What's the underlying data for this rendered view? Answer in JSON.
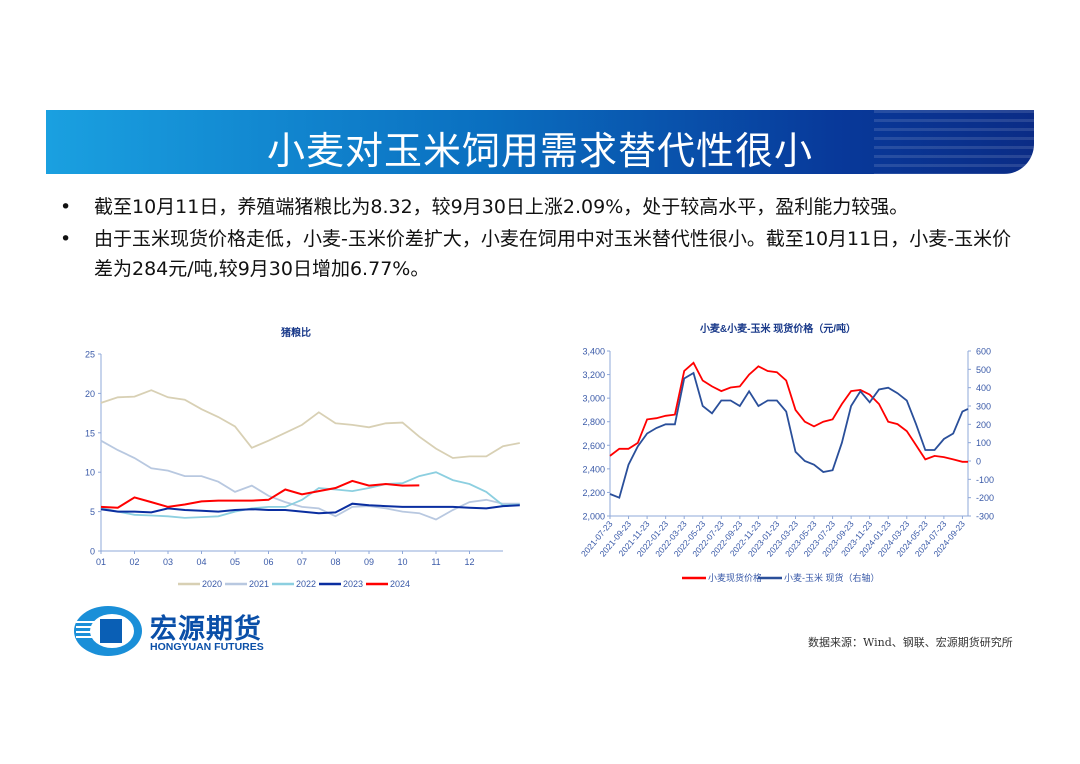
{
  "header": {
    "title": "小麦对玉米饲用需求替代性很小"
  },
  "bullets": [
    "截至10月11日，养殖端猪粮比为8.32，较9月30日上涨2.09%，处于较高水平，盈利能力较强。",
    "由于玉米现货价格走低，小麦-玉米价差扩大，小麦在饲用中对玉米替代性很小。截至10月11日，小麦-玉米价差为284元/吨,较9月30日增加6.77%。"
  ],
  "bullet_symbol": "•",
  "logo": {
    "cn": "宏源期货",
    "en": "HONGYUAN FUTURES"
  },
  "source": "数据来源：Wind、钢联、宏源期货研究所",
  "chart_data": [
    {
      "type": "line",
      "title": "猪粮比",
      "x_ticks": [
        "01",
        "02",
        "03",
        "04",
        "05",
        "06",
        "07",
        "08",
        "09",
        "10",
        "11",
        "12"
      ],
      "ylim": [
        0,
        25
      ],
      "y_ticks": [
        0,
        5,
        10,
        15,
        20,
        25
      ],
      "x_unit": "month (half-month steps starting at 1)",
      "legend_position": "bottom",
      "series": [
        {
          "name": "2020",
          "color": "#d8d0b4",
          "values": [
            18.8,
            19.5,
            19.6,
            20.4,
            19.5,
            19.2,
            18.0,
            17.0,
            15.8,
            13.1,
            14.0,
            15.0,
            16.0,
            17.6,
            16.2,
            16.0,
            15.7,
            16.2,
            16.3,
            14.5,
            13.0,
            11.8,
            12.0,
            12.0,
            13.3,
            13.7
          ]
        },
        {
          "name": "2021",
          "color": "#b8c8e0",
          "values": [
            14.0,
            12.8,
            11.8,
            10.5,
            10.2,
            9.5,
            9.5,
            8.8,
            7.5,
            8.3,
            7.0,
            6.2,
            5.6,
            5.4,
            4.4,
            5.6,
            5.7,
            5.4,
            5.0,
            4.8,
            4.0,
            5.2,
            6.2,
            6.5,
            6.0,
            6.0
          ]
        },
        {
          "name": "2022",
          "color": "#8ccfe0",
          "values": [
            5.5,
            5.0,
            4.6,
            4.5,
            4.4,
            4.2,
            4.3,
            4.4,
            5.0,
            5.4,
            5.6,
            5.6,
            6.5,
            8.0,
            7.8,
            7.6,
            8.0,
            8.5,
            8.6,
            9.5,
            10.0,
            9.0,
            8.5,
            7.5,
            5.8,
            5.9
          ]
        },
        {
          "name": "2023",
          "color": "#0a2ea0",
          "values": [
            5.3,
            5.0,
            5.0,
            4.9,
            5.4,
            5.2,
            5.1,
            5.0,
            5.2,
            5.3,
            5.2,
            5.2,
            5.0,
            4.8,
            4.9,
            6.0,
            5.8,
            5.7,
            5.6,
            5.6,
            5.6,
            5.6,
            5.5,
            5.4,
            5.7,
            5.8
          ]
        },
        {
          "name": "2024",
          "color": "#ff0000",
          "values": [
            5.6,
            5.5,
            6.8,
            6.2,
            5.6,
            5.9,
            6.3,
            6.4,
            6.4,
            6.4,
            6.5,
            7.8,
            7.2,
            7.6,
            8.0,
            8.9,
            8.3,
            8.5,
            8.3,
            8.32
          ]
        }
      ]
    },
    {
      "type": "line",
      "title": "小麦&小麦-玉米 现货价格（元/吨）",
      "x_ticks": [
        "2021-07-23",
        "2021-09-23",
        "2021-11-23",
        "2022-01-23",
        "2022-03-23",
        "2022-05-23",
        "2022-07-23",
        "2022-09-23",
        "2022-11-23",
        "2023-01-23",
        "2023-03-23",
        "2023-05-23",
        "2023-07-23",
        "2023-09-23",
        "2023-11-23",
        "2024-01-23",
        "2024-03-23",
        "2024-05-23",
        "2024-07-23",
        "2024-09-23"
      ],
      "ylim": [
        2000,
        3400
      ],
      "y_ticks": [
        "2,000",
        "2,200",
        "2,400",
        "2,600",
        "2,800",
        "3,000",
        "3,200",
        "3,400"
      ],
      "y2lim": [
        -300,
        600
      ],
      "y2_ticks": [
        "-300",
        "-200",
        "-100",
        "0",
        "100",
        "200",
        "300",
        "400",
        "500",
        "600"
      ],
      "x_unit": "months since 2021-07-23",
      "legend_position": "bottom",
      "series": [
        {
          "name": "小麦现货价格",
          "axis": "left",
          "color": "#ff0000",
          "values": [
            2510,
            2570,
            2570,
            2620,
            2820,
            2830,
            2850,
            2860,
            3230,
            3300,
            3150,
            3100,
            3060,
            3090,
            3100,
            3200,
            3270,
            3230,
            3220,
            3150,
            2900,
            2800,
            2760,
            2800,
            2820,
            2950,
            3060,
            3070,
            3030,
            2950,
            2800,
            2780,
            2720,
            2600,
            2480,
            2510,
            2500,
            2480,
            2460,
            2460
          ]
        },
        {
          "name": "小麦-玉米 现货（右轴）",
          "axis": "right",
          "color": "#2a4f9a",
          "values": [
            -180,
            -200,
            -20,
            80,
            150,
            180,
            200,
            200,
            450,
            480,
            300,
            260,
            330,
            330,
            300,
            380,
            300,
            330,
            330,
            270,
            50,
            0,
            -20,
            -60,
            -50,
            100,
            300,
            380,
            320,
            390,
            400,
            370,
            330,
            200,
            60,
            60,
            120,
            150,
            270,
            284
          ]
        }
      ]
    }
  ]
}
